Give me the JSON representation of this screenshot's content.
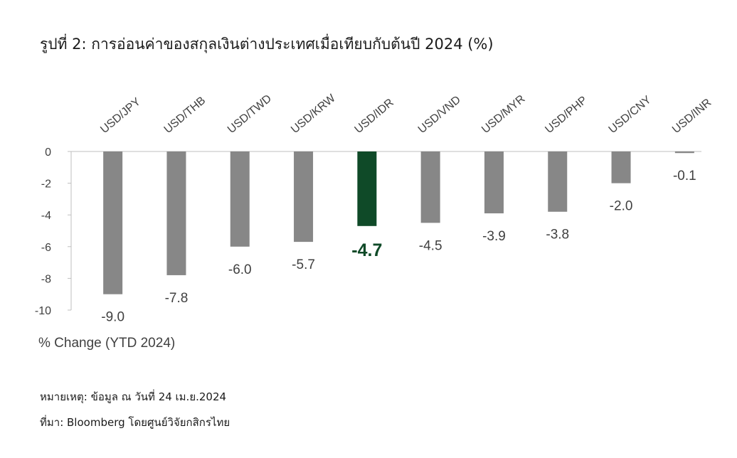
{
  "chart_data": {
    "type": "bar",
    "title": "รูปที่ 2: การอ่อนค่าของสกุลเงินต่างประเทศเมื่อเทียบกับต้นปี 2024 (%)",
    "categories": [
      "USD/JPY",
      "USD/THB",
      "USD/TWD",
      "USD/KRW",
      "USD/IDR",
      "USD/VND",
      "USD/MYR",
      "USD/PHP",
      "USD/CNY",
      "USD/INR"
    ],
    "values": [
      -9.0,
      -7.8,
      -6.0,
      -5.7,
      -4.7,
      -4.5,
      -3.9,
      -3.8,
      -2.0,
      -0.1
    ],
    "value_labels": [
      "-9.0",
      "-7.8",
      "-6.0",
      "-5.7",
      "-4.7",
      "-4.5",
      "-3.9",
      "-3.8",
      "-2.0",
      "-0.1"
    ],
    "highlight": "USD/IDR",
    "ylabel": "% Change (YTD 2024)",
    "xlabel": "",
    "ylim": [
      -10,
      0
    ],
    "yticks": [
      0,
      -2,
      -4,
      -6,
      -8,
      -10
    ],
    "grid": false,
    "legend": "none",
    "colors": {
      "bar": "#878787",
      "highlight": "#0f4a28",
      "axis": "#bfbfbf",
      "text": "#404040"
    }
  },
  "notes": {
    "remark": "หมายเหตุ: ข้อมูล ณ วันที่ 24 เม.ย.2024",
    "source": "ที่มา: Bloomberg โดยศูนย์วิจัยกสิกรไทย"
  }
}
